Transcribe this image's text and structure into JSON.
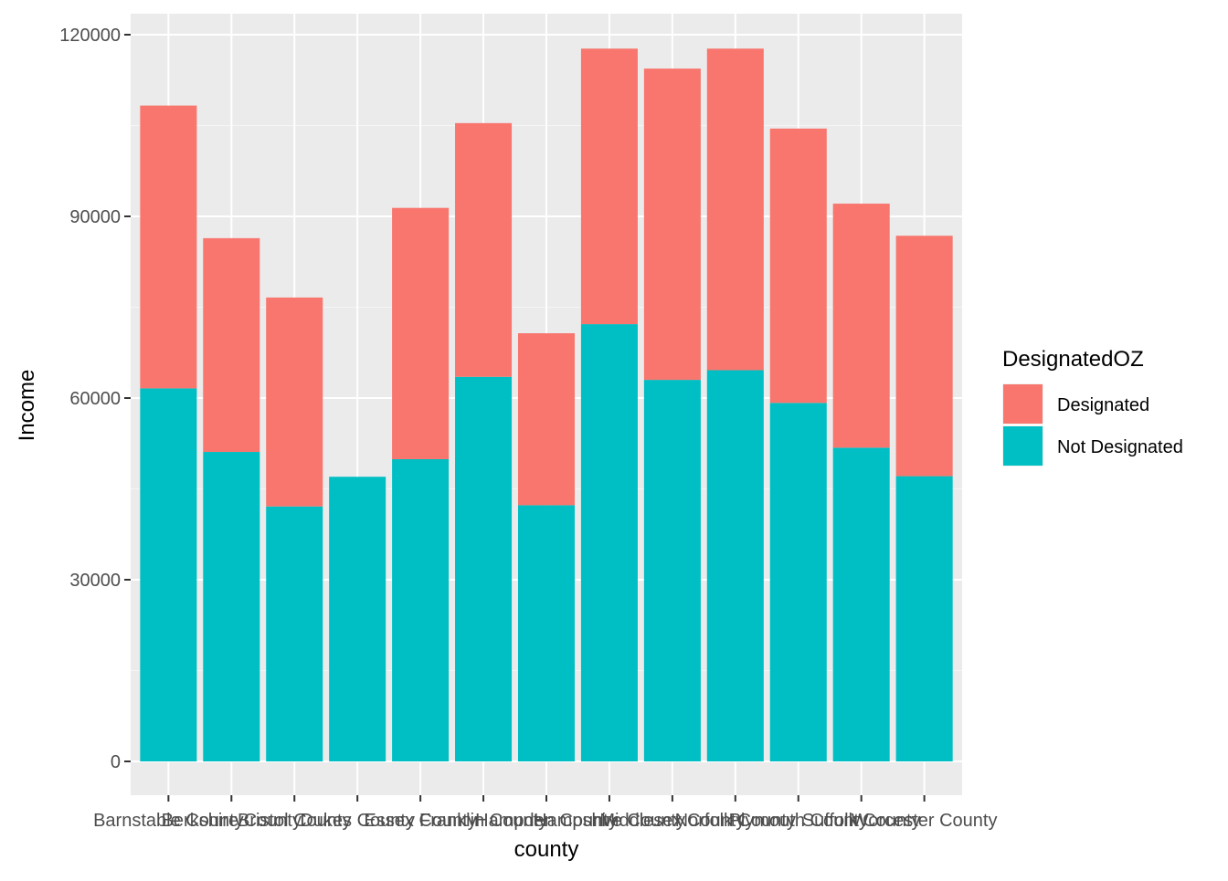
{
  "chart_data": {
    "type": "bar",
    "stacked": true,
    "xlabel": "county",
    "ylabel": "Income",
    "ylim": [
      0,
      120000
    ],
    "yticks": [
      0,
      30000,
      60000,
      90000,
      120000
    ],
    "grid": true,
    "legend_position": "right",
    "legend": {
      "title": "DesignatedOZ"
    },
    "categories": [
      "Barnstable County",
      "Berkshire County",
      "Bristol County",
      "Dukes County",
      "Essex County",
      "Franklin County",
      "Hampden County",
      "Hampshire County",
      "Middlesex County",
      "Norfolk County",
      "Plymouth County",
      "Suffolk County",
      "Worcester County"
    ],
    "series": [
      {
        "name": "Not Designated",
        "color": "#00BFC4",
        "values": [
          61600,
          51100,
          42100,
          47000,
          49900,
          63500,
          42300,
          72200,
          63000,
          64600,
          59200,
          51800,
          47100
        ]
      },
      {
        "name": "Designated",
        "color": "#F8766D",
        "values": [
          46700,
          35300,
          34500,
          0,
          41500,
          41900,
          28400,
          45500,
          51400,
          53100,
          45300,
          40300,
          39700
        ]
      }
    ],
    "legend_order": [
      "Designated",
      "Not Designated"
    ]
  }
}
